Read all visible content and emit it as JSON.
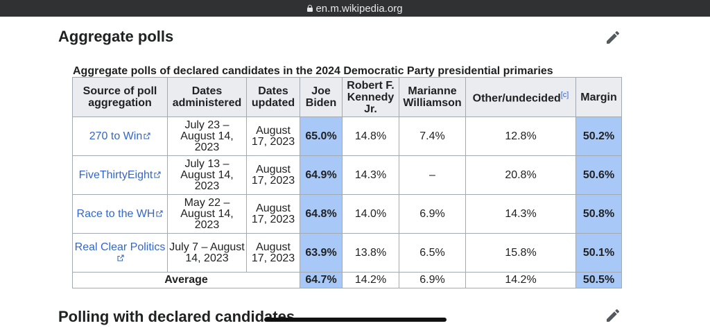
{
  "browser": {
    "url": "en.m.wikipedia.org"
  },
  "sections": {
    "aggregate_title": "Aggregate polls",
    "next_title": "Polling with declared candidates"
  },
  "table": {
    "caption": "Aggregate polls of declared candidates in the 2024 Democratic Party presidential primaries",
    "headers": {
      "source": "Source of poll aggregation",
      "administered": "Dates administered",
      "updated": "Dates updated",
      "biden": "Joe Biden",
      "rfk": "Robert F. Kennedy Jr.",
      "williamson": "Marianne Williamson",
      "other": "Other/undecided",
      "other_note": "[c]",
      "margin": "Margin"
    },
    "rows": [
      {
        "source": "270 to Win",
        "administered": "July 23 – August 14, 2023",
        "updated": "August 17, 2023",
        "biden": "65.0%",
        "rfk": "14.8%",
        "williamson": "7.4%",
        "other": "12.8%",
        "margin": "50.2%"
      },
      {
        "source": "FiveThirtyEight",
        "administered": "July 13 – August 14, 2023",
        "updated": "August 17, 2023",
        "biden": "64.9%",
        "rfk": "14.3%",
        "williamson": "–",
        "other": "20.8%",
        "margin": "50.6%"
      },
      {
        "source": "Race to the WH",
        "administered": "May 22 – August 14, 2023",
        "updated": "August 17, 2023",
        "biden": "64.8%",
        "rfk": "14.0%",
        "williamson": "6.9%",
        "other": "14.3%",
        "margin": "50.8%"
      },
      {
        "source": "Real Clear Politics",
        "administered": "July 7 – August 14, 2023",
        "updated": "August 17, 2023",
        "biden": "63.9%",
        "rfk": "13.8%",
        "williamson": "6.5%",
        "other": "15.8%",
        "margin": "50.1%"
      }
    ],
    "average": {
      "label": "Average",
      "biden": "64.7%",
      "rfk": "14.2%",
      "williamson": "6.9%",
      "other": "14.2%",
      "margin": "50.5%"
    }
  },
  "colors": {
    "highlight": "#a8c9f7",
    "link": "#3366cc",
    "header_bg": "#eaecf0"
  },
  "icons": {
    "edit": "pencil-icon",
    "external": "external-link-icon",
    "lock": "lock-icon"
  }
}
